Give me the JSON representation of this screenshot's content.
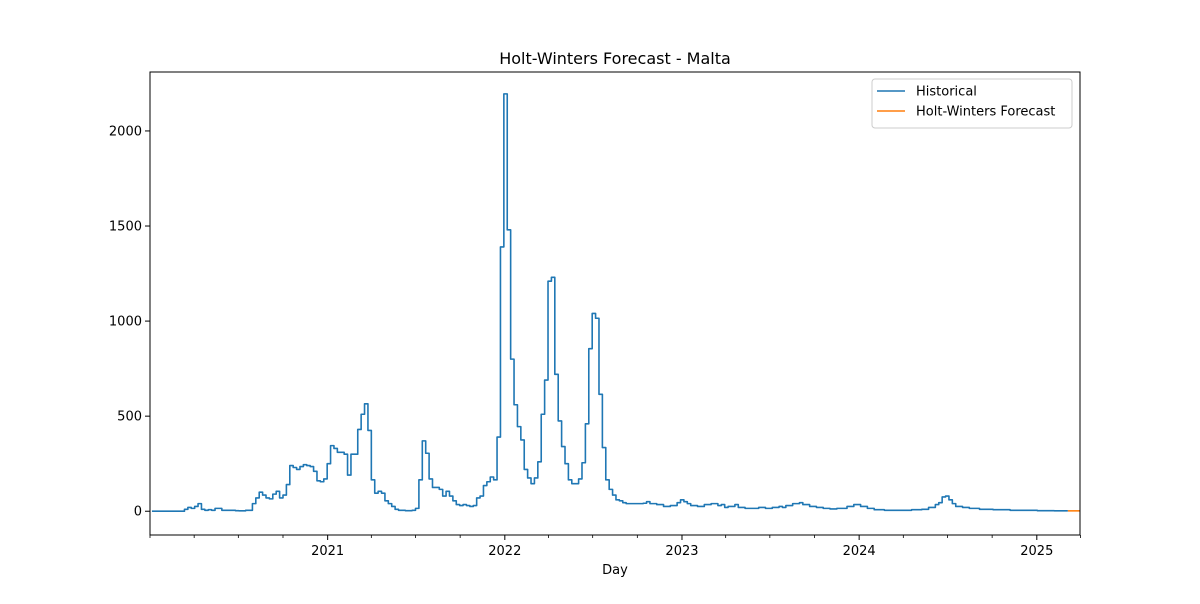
{
  "chart_data": {
    "type": "line",
    "title": "Holt-Winters Forecast - Malta",
    "xlabel": "Day",
    "ylabel": "",
    "x_type": "date",
    "xlim": [
      "2020-01-01",
      "2025-03-31"
    ],
    "ylim": [
      -125,
      2310
    ],
    "y_ticks": [
      0,
      500,
      1000,
      1500,
      2000
    ],
    "x_major_ticks": [
      {
        "date": "2021-01-01",
        "label": "2021"
      },
      {
        "date": "2022-01-01",
        "label": "2022"
      },
      {
        "date": "2023-01-01",
        "label": "2023"
      },
      {
        "date": "2024-01-01",
        "label": "2024"
      },
      {
        "date": "2025-01-01",
        "label": "2025"
      }
    ],
    "x_minor_ticks": [
      "2020-01-01",
      "2020-04-01",
      "2020-07-01",
      "2020-10-01",
      "2021-04-01",
      "2021-07-01",
      "2021-10-01",
      "2022-04-01",
      "2022-07-01",
      "2022-10-01",
      "2023-04-01",
      "2023-07-01",
      "2023-10-01",
      "2024-04-01",
      "2024-07-01",
      "2024-10-01",
      "2025-04-01"
    ],
    "grid": false,
    "legend_position": "top-right",
    "step_plot": true,
    "series": [
      {
        "name": "Historical",
        "color": "#1f77b4",
        "points": [
          [
            "2020-01-05",
            0
          ],
          [
            "2020-03-05",
            0
          ],
          [
            "2020-03-12",
            10
          ],
          [
            "2020-03-19",
            20
          ],
          [
            "2020-03-26",
            15
          ],
          [
            "2020-04-02",
            25
          ],
          [
            "2020-04-09",
            40
          ],
          [
            "2020-04-16",
            10
          ],
          [
            "2020-04-23",
            5
          ],
          [
            "2020-04-30",
            8
          ],
          [
            "2020-05-07",
            5
          ],
          [
            "2020-05-14",
            15
          ],
          [
            "2020-05-21",
            15
          ],
          [
            "2020-05-28",
            5
          ],
          [
            "2020-06-04",
            5
          ],
          [
            "2020-06-11",
            5
          ],
          [
            "2020-06-25",
            3
          ],
          [
            "2020-07-02",
            2
          ],
          [
            "2020-07-16",
            5
          ],
          [
            "2020-07-30",
            40
          ],
          [
            "2020-08-06",
            70
          ],
          [
            "2020-08-13",
            100
          ],
          [
            "2020-08-20",
            85
          ],
          [
            "2020-08-27",
            70
          ],
          [
            "2020-09-03",
            65
          ],
          [
            "2020-09-10",
            90
          ],
          [
            "2020-09-17",
            105
          ],
          [
            "2020-09-24",
            70
          ],
          [
            "2020-10-01",
            85
          ],
          [
            "2020-10-08",
            140
          ],
          [
            "2020-10-15",
            240
          ],
          [
            "2020-10-22",
            230
          ],
          [
            "2020-10-29",
            220
          ],
          [
            "2020-11-05",
            235
          ],
          [
            "2020-11-12",
            245
          ],
          [
            "2020-11-19",
            240
          ],
          [
            "2020-11-26",
            235
          ],
          [
            "2020-12-03",
            210
          ],
          [
            "2020-12-10",
            160
          ],
          [
            "2020-12-17",
            155
          ],
          [
            "2020-12-24",
            170
          ],
          [
            "2020-12-31",
            250
          ],
          [
            "2021-01-07",
            345
          ],
          [
            "2021-01-14",
            330
          ],
          [
            "2021-01-21",
            310
          ],
          [
            "2021-02-04",
            300
          ],
          [
            "2021-02-11",
            190
          ],
          [
            "2021-02-18",
            300
          ],
          [
            "2021-03-04",
            430
          ],
          [
            "2021-03-11",
            510
          ],
          [
            "2021-03-18",
            565
          ],
          [
            "2021-03-25",
            425
          ],
          [
            "2021-04-01",
            165
          ],
          [
            "2021-04-08",
            95
          ],
          [
            "2021-04-15",
            105
          ],
          [
            "2021-04-22",
            95
          ],
          [
            "2021-04-29",
            55
          ],
          [
            "2021-05-06",
            40
          ],
          [
            "2021-05-13",
            25
          ],
          [
            "2021-05-20",
            10
          ],
          [
            "2021-05-27",
            5
          ],
          [
            "2021-06-10",
            3
          ],
          [
            "2021-06-24",
            5
          ],
          [
            "2021-07-01",
            15
          ],
          [
            "2021-07-08",
            165
          ],
          [
            "2021-07-15",
            370
          ],
          [
            "2021-07-22",
            305
          ],
          [
            "2021-07-29",
            170
          ],
          [
            "2021-08-05",
            125
          ],
          [
            "2021-08-19",
            115
          ],
          [
            "2021-08-26",
            80
          ],
          [
            "2021-09-02",
            105
          ],
          [
            "2021-09-09",
            80
          ],
          [
            "2021-09-16",
            55
          ],
          [
            "2021-09-23",
            35
          ],
          [
            "2021-09-30",
            30
          ],
          [
            "2021-10-07",
            35
          ],
          [
            "2021-10-14",
            30
          ],
          [
            "2021-10-21",
            25
          ],
          [
            "2021-10-28",
            30
          ],
          [
            "2021-11-04",
            70
          ],
          [
            "2021-11-11",
            80
          ],
          [
            "2021-11-18",
            135
          ],
          [
            "2021-11-25",
            155
          ],
          [
            "2021-12-02",
            180
          ],
          [
            "2021-12-09",
            165
          ],
          [
            "2021-12-16",
            390
          ],
          [
            "2021-12-23",
            1390
          ],
          [
            "2021-12-30",
            2195
          ],
          [
            "2022-01-06",
            1480
          ],
          [
            "2022-01-13",
            800
          ],
          [
            "2022-01-20",
            560
          ],
          [
            "2022-01-27",
            445
          ],
          [
            "2022-02-03",
            375
          ],
          [
            "2022-02-10",
            220
          ],
          [
            "2022-02-17",
            175
          ],
          [
            "2022-02-24",
            145
          ],
          [
            "2022-03-03",
            175
          ],
          [
            "2022-03-10",
            260
          ],
          [
            "2022-03-17",
            510
          ],
          [
            "2022-03-24",
            690
          ],
          [
            "2022-03-31",
            1210
          ],
          [
            "2022-04-07",
            1230
          ],
          [
            "2022-04-14",
            720
          ],
          [
            "2022-04-21",
            475
          ],
          [
            "2022-04-28",
            340
          ],
          [
            "2022-05-05",
            250
          ],
          [
            "2022-05-12",
            165
          ],
          [
            "2022-05-19",
            145
          ],
          [
            "2022-06-02",
            170
          ],
          [
            "2022-06-09",
            255
          ],
          [
            "2022-06-16",
            460
          ],
          [
            "2022-06-23",
            855
          ],
          [
            "2022-06-30",
            1040
          ],
          [
            "2022-07-07",
            1015
          ],
          [
            "2022-07-14",
            615
          ],
          [
            "2022-07-21",
            335
          ],
          [
            "2022-07-28",
            165
          ],
          [
            "2022-08-04",
            115
          ],
          [
            "2022-08-11",
            85
          ],
          [
            "2022-08-18",
            60
          ],
          [
            "2022-08-25",
            55
          ],
          [
            "2022-09-01",
            45
          ],
          [
            "2022-09-08",
            40
          ],
          [
            "2022-10-13",
            42
          ],
          [
            "2022-10-20",
            50
          ],
          [
            "2022-10-27",
            40
          ],
          [
            "2022-11-10",
            35
          ],
          [
            "2022-11-24",
            25
          ],
          [
            "2022-12-08",
            30
          ],
          [
            "2022-12-22",
            45
          ],
          [
            "2022-12-29",
            60
          ],
          [
            "2023-01-05",
            50
          ],
          [
            "2023-01-12",
            40
          ],
          [
            "2023-01-19",
            30
          ],
          [
            "2023-02-02",
            25
          ],
          [
            "2023-02-16",
            35
          ],
          [
            "2023-03-02",
            40
          ],
          [
            "2023-03-16",
            30
          ],
          [
            "2023-03-23",
            35
          ],
          [
            "2023-03-30",
            20
          ],
          [
            "2023-04-06",
            25
          ],
          [
            "2023-04-20",
            35
          ],
          [
            "2023-04-27",
            20
          ],
          [
            "2023-05-11",
            15
          ],
          [
            "2023-05-25",
            15
          ],
          [
            "2023-06-08",
            20
          ],
          [
            "2023-06-22",
            15
          ],
          [
            "2023-07-06",
            20
          ],
          [
            "2023-07-20",
            25
          ],
          [
            "2023-07-27",
            20
          ],
          [
            "2023-08-03",
            30
          ],
          [
            "2023-08-17",
            40
          ],
          [
            "2023-08-31",
            45
          ],
          [
            "2023-09-07",
            35
          ],
          [
            "2023-09-21",
            25
          ],
          [
            "2023-10-05",
            20
          ],
          [
            "2023-10-19",
            15
          ],
          [
            "2023-11-02",
            12
          ],
          [
            "2023-11-16",
            15
          ],
          [
            "2023-12-07",
            25
          ],
          [
            "2023-12-21",
            35
          ],
          [
            "2024-01-04",
            25
          ],
          [
            "2024-01-18",
            15
          ],
          [
            "2024-02-01",
            8
          ],
          [
            "2024-02-22",
            5
          ],
          [
            "2024-03-21",
            5
          ],
          [
            "2024-04-18",
            8
          ],
          [
            "2024-05-09",
            10
          ],
          [
            "2024-05-23",
            20
          ],
          [
            "2024-06-06",
            35
          ],
          [
            "2024-06-13",
            45
          ],
          [
            "2024-06-20",
            75
          ],
          [
            "2024-06-27",
            80
          ],
          [
            "2024-07-04",
            60
          ],
          [
            "2024-07-11",
            40
          ],
          [
            "2024-07-18",
            25
          ],
          [
            "2024-08-01",
            20
          ],
          [
            "2024-08-15",
            15
          ],
          [
            "2024-09-05",
            10
          ],
          [
            "2024-10-03",
            8
          ],
          [
            "2024-11-07",
            5
          ],
          [
            "2024-12-05",
            5
          ],
          [
            "2025-01-02",
            3
          ],
          [
            "2025-02-06",
            2
          ],
          [
            "2025-03-06",
            2
          ]
        ]
      },
      {
        "name": "Holt-Winters Forecast",
        "color": "#ff7f0e",
        "points": [
          [
            "2025-03-06",
            2
          ],
          [
            "2025-03-31",
            2
          ]
        ]
      }
    ]
  }
}
